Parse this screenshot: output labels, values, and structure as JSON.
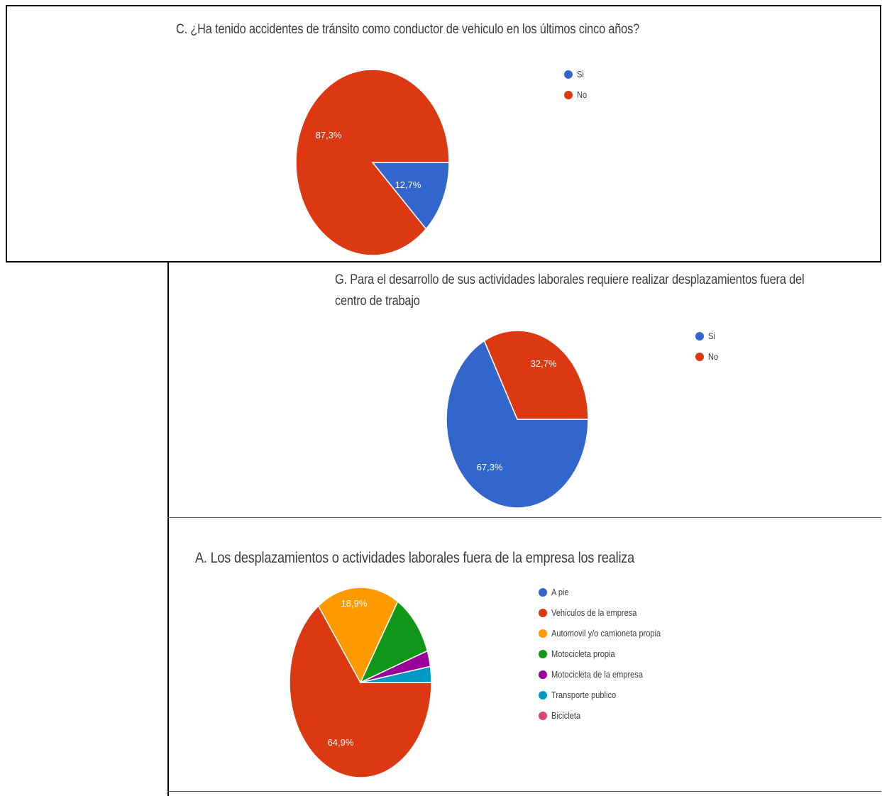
{
  "chart_data": [
    {
      "type": "pie",
      "title": "C. ¿Ha tenido accidentes de tránsito como conductor de vehiculo en los últimos cinco años?",
      "series": [
        {
          "name": "Si",
          "value": 12.7,
          "label": "12,7%",
          "color": "#3366cc"
        },
        {
          "name": "No",
          "value": 87.3,
          "label": "87,3%",
          "color": "#dc3912"
        }
      ],
      "legend": "right"
    },
    {
      "type": "pie",
      "title": "G. Para el desarrollo de sus actividades laborales requiere realizar desplazamientos fuera del centro de trabajo",
      "series": [
        {
          "name": "Si",
          "value": 67.3,
          "label": "67,3%",
          "color": "#3366cc"
        },
        {
          "name": "No",
          "value": 32.7,
          "label": "32,7%",
          "color": "#dc3912"
        }
      ],
      "legend": "right"
    },
    {
      "type": "pie",
      "title": "A. Los desplazamientos o actividades laborales fuera de la empresa los realiza",
      "series": [
        {
          "name": "A pie",
          "value": 0,
          "label": "",
          "color": "#3366cc"
        },
        {
          "name": "Vehiculos de la empresa",
          "value": 64.9,
          "label": "64,9%",
          "color": "#dc3912"
        },
        {
          "name": "Automovil y/o camioneta propia",
          "value": 18.9,
          "label": "18,9%",
          "color": "#ff9900"
        },
        {
          "name": "Motocicleta propia",
          "value": 10.8,
          "label": "",
          "color": "#109618"
        },
        {
          "name": "Motocicleta de la empresa",
          "value": 2.7,
          "label": "",
          "color": "#990099"
        },
        {
          "name": "Transporte publico",
          "value": 2.7,
          "label": "",
          "color": "#0099c6"
        },
        {
          "name": "Bicicleta",
          "value": 0,
          "label": "",
          "color": "#dd4477"
        }
      ],
      "legend": "right"
    }
  ]
}
